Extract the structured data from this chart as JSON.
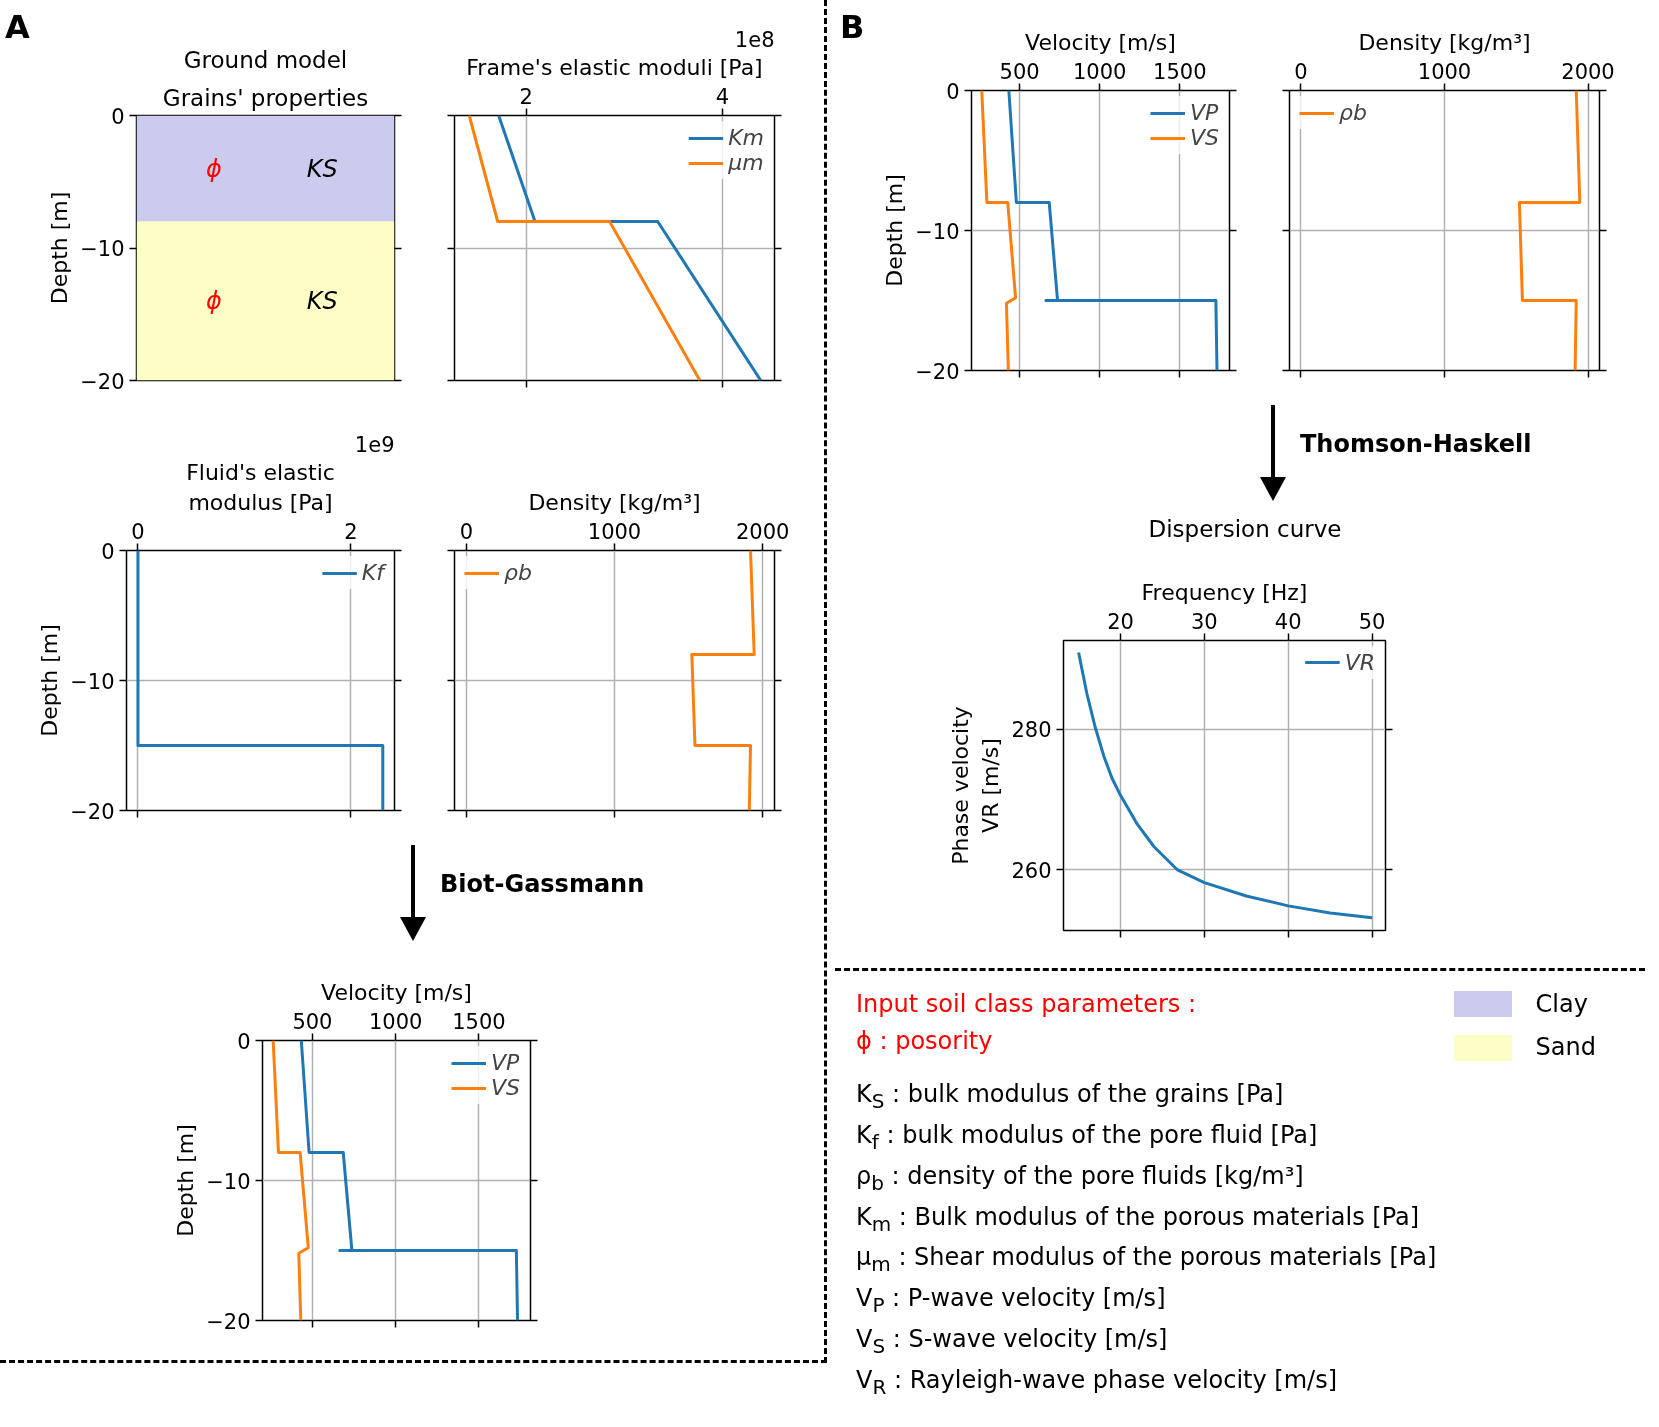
{
  "chart_data": [
    {
      "type": "bar",
      "stacked": true,
      "title": "Ground model",
      "subtitle": "Grains' properties",
      "ylabel": "Depth [m]",
      "categories": [
        null
      ],
      "ylim": [
        -20,
        0
      ],
      "yticks": [
        0,
        -10,
        -20
      ],
      "tick_labels": "y",
      "series": [
        {
          "name": "Clay",
          "color": "#cbcbee",
          "values": [
            -8
          ]
        },
        {
          "name": "Sand",
          "color": "#fdfdc6",
          "values": [
            -12
          ]
        }
      ],
      "legend": "bottom right",
      "annotations": [
        "A",
        "ϕ",
        "KS",
        "ϕ",
        "KS"
      ]
    },
    {
      "type": "line",
      "xlabel": "Frame's elastic moduli [Pa]",
      "xlim": [
        1.27,
        4.53
      ],
      "xticks": [
        2,
        4
      ],
      "ylim": [
        -20,
        0
      ],
      "yticks": [
        0,
        -10,
        -20
      ],
      "tick_labels": "x",
      "grid": true,
      "legend": "top right",
      "annotations": [
        "1e8"
      ],
      "series": [
        {
          "name": "Km",
          "color": "#1f77b4",
          "x": [
            1.72,
            2.09,
            3.34,
            4.39
          ],
          "values": [
            0,
            -8,
            -8,
            -20
          ]
        },
        {
          "name": "μm",
          "color": "#ff7f0e",
          "x": [
            1.42,
            1.71,
            2.85,
            3.77
          ],
          "values": [
            0,
            -8,
            -8,
            -20
          ]
        }
      ]
    },
    {
      "type": "line",
      "xlabel": "Fluid's elastic\nmodulus [Pa]",
      "ylabel": "Depth [m]",
      "xlim": [
        -0.108,
        2.41
      ],
      "xticks": [
        0,
        2
      ],
      "ylim": [
        -20,
        0
      ],
      "yticks": [
        0,
        -10,
        -20
      ],
      "grid": true,
      "legend": "top right",
      "annotations": [
        "1e9"
      ],
      "series": [
        {
          "name": "Kf",
          "color": "#1f77b4",
          "x": [
            0,
            0,
            2.3,
            2.3
          ],
          "values": [
            0,
            -15,
            -15,
            -20
          ]
        }
      ]
    },
    {
      "type": "line",
      "xlabel": "Density [kg/m³]",
      "xlim": [
        -80,
        2080
      ],
      "xticks": [
        0,
        1000,
        2000
      ],
      "ylim": [
        -20,
        0
      ],
      "yticks": [
        0,
        -10,
        -20
      ],
      "tick_labels": "x",
      "grid": true,
      "legend": "top left",
      "series": [
        {
          "name": "ρb",
          "color": "#ff7f0e",
          "x": [
            1918,
            1943,
            1522,
            1543,
            1918,
            1910
          ],
          "values": [
            0,
            -8,
            -8,
            -15,
            -15,
            -20
          ]
        }
      ]
    },
    {
      "type": "line",
      "xlabel": "Velocity [m/s]",
      "ylabel": "Depth [m]",
      "xlim": [
        200,
        1810
      ],
      "xticks": [
        500,
        1000,
        1500
      ],
      "ylim": [
        -20,
        0
      ],
      "yticks": [
        0,
        -10,
        -20
      ],
      "grid": true,
      "legend": "top right",
      "annotations": [
        "Biot-Gassmann"
      ],
      "series": [
        {
          "name": "VP",
          "color": "#1f77b4",
          "x": [
            433,
            480,
            685,
            737,
            664,
            1725,
            1732
          ],
          "values": [
            0,
            -8,
            -8,
            -15,
            -15,
            -15,
            -20
          ]
        },
        {
          "name": "VS",
          "color": "#ff7f0e",
          "x": [
            264,
            296,
            426,
            475,
            418,
            430
          ],
          "values": [
            0,
            -8,
            -8,
            -14.8,
            -15.2,
            -20
          ]
        }
      ]
    },
    {
      "type": "line",
      "xlabel": "Velocity [m/s]",
      "ylabel": "Depth [m]",
      "xlim": [
        200,
        1810
      ],
      "xticks": [
        500,
        1000,
        1500
      ],
      "ylim": [
        -20,
        0
      ],
      "yticks": [
        0,
        -10,
        -20
      ],
      "grid": true,
      "legend": "top right",
      "annotations": [
        "B"
      ],
      "series": [
        {
          "name": "VP",
          "color": "#1f77b4",
          "x": [
            433,
            480,
            685,
            737,
            664,
            1725,
            1732
          ],
          "values": [
            0,
            -8,
            -8,
            -15,
            -15,
            -15,
            -20
          ]
        },
        {
          "name": "VS",
          "color": "#ff7f0e",
          "x": [
            264,
            296,
            426,
            475,
            418,
            430
          ],
          "values": [
            0,
            -8,
            -8,
            -14.8,
            -15.2,
            -20
          ]
        }
      ]
    },
    {
      "type": "line",
      "xlabel": "Density [kg/m³]",
      "xlim": [
        -80,
        2080
      ],
      "xticks": [
        0,
        1000,
        2000
      ],
      "ylim": [
        -20,
        0
      ],
      "yticks": [
        0,
        -10,
        -20
      ],
      "tick_labels": "x",
      "grid": true,
      "legend": "top left",
      "series": [
        {
          "name": "ρb",
          "color": "#ff7f0e",
          "x": [
            1918,
            1943,
            1522,
            1543,
            1918,
            1910
          ],
          "values": [
            0,
            -8,
            -8,
            -15,
            -15,
            -20
          ]
        }
      ]
    },
    {
      "type": "line",
      "title": "Dispersion curve",
      "xlabel": "Frequency [Hz]",
      "ylabel": "Phase velocity\nVR [m/s]",
      "xlim": [
        13.2,
        51.6
      ],
      "xticks": [
        20,
        30,
        40,
        50
      ],
      "ylim": [
        251.4,
        292.6
      ],
      "yticks": [
        260,
        280
      ],
      "grid": true,
      "legend": "top right",
      "annotations": [
        "Thomson-Haskell"
      ],
      "series": [
        {
          "name": "VR",
          "color": "#1f77b4",
          "x": [
            15,
            16,
            17,
            18,
            19,
            20,
            22,
            24,
            26.8,
            30,
            35,
            40,
            45,
            50
          ],
          "values": [
            290.9,
            285,
            280.2,
            276.2,
            273,
            270.6,
            266.5,
            263.3,
            260,
            258.2,
            256.3,
            254.9,
            253.9,
            253.2
          ]
        }
      ]
    },
    {
      "type": "other",
      "title": "Input soil class parameters :",
      "subtitle": "ϕ : posority",
      "annotations": [
        "K$_{S}$ : bulk modulus of the grains [Pa]",
        "K$_{f}$ : bulk modulus of the pore fluid [Pa]",
        "ρ$_{b}$ : density of the pore fluids [kg/m³]",
        "K$_{m}$ : Bulk modulus of the porous materials [Pa]",
        "μ$_{m}$ : Shear modulus of the porous materials [Pa]",
        "V$_{P}$ : P-wave velocity [m/s]",
        "V$_{S}$ : S-wave velocity [m/s]",
        "V$_{R}$ : Rayleigh-wave phase velocity [m/s]"
      ]
    }
  ]
}
